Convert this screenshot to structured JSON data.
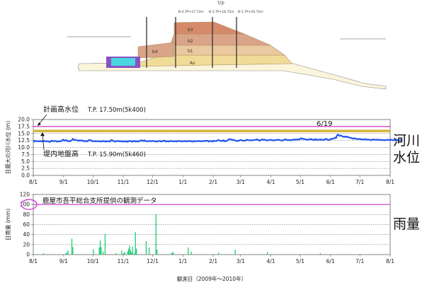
{
  "cross_section": {
    "header_label": "t/p",
    "layer_labels": [
      "b3",
      "b2",
      "b1",
      "b4",
      "As"
    ],
    "caption_lines": [
      "B-2.7P+17.72m",
      "B-1.7P+16.72m",
      "B-1.7P+16.72m"
    ],
    "colors": {
      "top_layer": "#d58a6a",
      "middle_layer": "#d9a487",
      "lower_layer": "#ebc9a0",
      "base_layer": "#f0dc98",
      "purple_block": "#8a52c0",
      "cyan_block": "#49d6e0",
      "line": "#888888"
    }
  },
  "chart_data": [
    {
      "type": "line",
      "ylabel": "日最大の河川水位 (m)",
      "ylim": [
        0,
        20
      ],
      "yticks": [
        "0.0",
        "2.5",
        "5.0",
        "7.5",
        "10.0",
        "12.5",
        "15.0",
        "17.5",
        "20.0"
      ],
      "xticks": [
        "8/1",
        "9/1",
        "10/1",
        "11/1",
        "12/1",
        "1/1",
        "2/1",
        "3/1",
        "4/1",
        "5/1",
        "6/1",
        "7/1",
        "8/1"
      ],
      "grid": true,
      "colors": {
        "series": "#2255ee",
        "plan_line": "#cc33cc",
        "ground_line": "#c9a600",
        "ground_band": "#d6b44a"
      },
      "annotations": {
        "plan_label": "計画高水位",
        "plan_value": "T.P.  17.50m(5k400)",
        "ground_label": "堤内地盤高",
        "ground_value": "T.P.  15.90m(5k460)",
        "date_marker": "6/19"
      },
      "reference_lines": {
        "plan_high_water": 17.5,
        "ground_level": 15.9
      },
      "series": [
        {
          "values": [
            11.9,
            12.4,
            12.3,
            12.2,
            12.2,
            12.2,
            12.2,
            12.3,
            12.1,
            12.2,
            12.3,
            12.3,
            12.2,
            12.2,
            12.2,
            12.1,
            12.0,
            12.0,
            12.4,
            12.4,
            12.2,
            12.3,
            12.3,
            12.2,
            12.1,
            12.1,
            12.2,
            12.2,
            12.2,
            12.6,
            12.8,
            12.4,
            12.5,
            12.7,
            12.4,
            12.2,
            12.3,
            12.2,
            12.4,
            12.6,
            13.1,
            12.7,
            12.7,
            12.7,
            12.6,
            12.4,
            12.4,
            12.6,
            12.4,
            12.5,
            12.5,
            12.2,
            12.3,
            12.3,
            12.2,
            12.2,
            12.5,
            12.7,
            12.5,
            12.5,
            12.2,
            12.2,
            12.2,
            12.2,
            12.2,
            12.2,
            12.2,
            12.2,
            12.2,
            12.1,
            12.2,
            12.3,
            12.2,
            12.1,
            12.1,
            12.2,
            12.2,
            12.2,
            12.1,
            12.6,
            12.6,
            12.4,
            12.2,
            12.1,
            12.1,
            12.3,
            12.3,
            12.2,
            12.2,
            12.3,
            12.1,
            12.1,
            12.2,
            12.1,
            12.1,
            12.2,
            12.0,
            12.2,
            12.4,
            12.2,
            12.2,
            12.0,
            12.3,
            12.3,
            12.1,
            12.2,
            12.1,
            12.1,
            12.3,
            12.4,
            12.6,
            12.4,
            12.3,
            12.6,
            12.3,
            12.2,
            12.2,
            12.2,
            12.3,
            12.3,
            12.2,
            12.3,
            12.3,
            12.3,
            12.2,
            12.1,
            12.1,
            12.2,
            12.3,
            12.3,
            12.1,
            12.2,
            12.3,
            12.5,
            12.3,
            12.1,
            12.2,
            12.2,
            12.1,
            12.3,
            12.3,
            12.2,
            12.2,
            12.2,
            12.2,
            12.2,
            12.1,
            12.3,
            12.3,
            12.3,
            12.2,
            12.2,
            12.2,
            12.2,
            12.2,
            12.3,
            12.2,
            12.2,
            12.2,
            12.4,
            12.2,
            12.2,
            12.1,
            12.1,
            12.3,
            12.2,
            12.2,
            12.2,
            12.3,
            12.3,
            12.2,
            12.3,
            12.2,
            12.2,
            12.4,
            12.3,
            12.3,
            12.4,
            12.4,
            12.1,
            12.3,
            12.3,
            12.2,
            12.1,
            12.4,
            12.3,
            12.3,
            12.3,
            12.6,
            12.6,
            12.5,
            12.3,
            12.4,
            12.3,
            12.6,
            12.2,
            12.3,
            12.3,
            12.5,
            12.8,
            12.9,
            13.0,
            12.8,
            12.8,
            12.6,
            12.7,
            12.5,
            12.3,
            12.3,
            12.5,
            12.4,
            12.6,
            12.7,
            12.5,
            12.4,
            12.4,
            12.5,
            12.5,
            12.8,
            12.6,
            12.6,
            12.6,
            12.5,
            12.6,
            12.6,
            12.6,
            12.7,
            12.7,
            12.9,
            12.8,
            12.6,
            12.4,
            12.7,
            12.7,
            12.9,
            12.7,
            12.8,
            12.6,
            12.6,
            12.5,
            12.6,
            12.6,
            12.8,
            12.6,
            12.6,
            12.5,
            12.6,
            12.6,
            12.6,
            12.8,
            12.7,
            12.7,
            12.6,
            12.5,
            12.5,
            12.5,
            12.8,
            12.8,
            12.9,
            12.6,
            12.7,
            12.7,
            12.5,
            12.7,
            12.6,
            12.8,
            12.8,
            12.9,
            12.8,
            12.8,
            12.9,
            12.8,
            12.9,
            13.3,
            13.1,
            13.2,
            13.0,
            13.0,
            12.9,
            12.8,
            12.8,
            12.8,
            13.0,
            12.9,
            13.0,
            12.7,
            12.8,
            12.6,
            13.0,
            12.8,
            12.7,
            12.8,
            12.8,
            12.9,
            12.8,
            12.7,
            12.8,
            12.7,
            12.9,
            13.1,
            12.9,
            12.7,
            12.6,
            12.9,
            13.1,
            13.0,
            13.1,
            13.3,
            13.5,
            13.3,
            14.2,
            14.6,
            14.3,
            14.2,
            14.3,
            14.1,
            13.9,
            13.8,
            13.9,
            13.7,
            13.9,
            13.8,
            13.6,
            13.5,
            13.4,
            13.3,
            13.3,
            13.1,
            13.3,
            13.2,
            13.0,
            13.0,
            13.1,
            13.0,
            13.0,
            12.9,
            12.9,
            12.9,
            12.8,
            13.0,
            12.9,
            12.8,
            12.8,
            12.8,
            12.8,
            12.6,
            12.7,
            12.9,
            12.8,
            12.8,
            12.7,
            12.8,
            12.7,
            12.8,
            12.7,
            12.6,
            12.7,
            12.7,
            12.6,
            12.6,
            12.6,
            12.7,
            12.8,
            12.7,
            12.6,
            12.8,
            12.7,
            12.6,
            12.6,
            12.6,
            12.5,
            12.7,
            12.6,
            12.6,
            12.6,
            12.6,
            12.6,
            12.5
          ]
        }
      ],
      "side_label": [
        "河川",
        "水位"
      ]
    },
    {
      "type": "bar",
      "ylabel": "日雨量 (mm)",
      "xlabel": "観測日（2009年～2010年）",
      "ylim": [
        0,
        120
      ],
      "yticks": [
        "0",
        "20",
        "40",
        "60",
        "80",
        "100",
        "120"
      ],
      "xticks": [
        "8/1",
        "9/1",
        "10/1",
        "11/1",
        "12/1",
        "1/1",
        "2/1",
        "3/1",
        "4/1",
        "5/1",
        "6/1",
        "7/1",
        "8/1"
      ],
      "grid": true,
      "colors": {
        "series": "#22cc77",
        "reference_line": "#cc33cc",
        "ring": "#cc33cc"
      },
      "annotations": {
        "source_note": "鹿屋市吾平総合支所提供の観測データ",
        "ring_value": "100"
      },
      "reference_lines": {
        "value_100": 100
      },
      "series": [
        {
          "values": [
            0,
            0,
            0,
            0,
            0,
            0,
            0,
            0,
            0,
            0,
            3,
            0,
            0,
            0,
            0,
            0,
            0,
            0,
            0,
            0,
            0,
            0,
            0,
            0,
            0,
            0,
            0,
            0,
            0,
            0,
            0,
            0,
            0,
            3,
            4,
            8,
            0,
            0,
            0,
            32,
            15,
            0,
            0,
            0,
            0,
            0,
            0,
            0,
            0,
            0,
            0,
            0,
            0,
            0,
            0,
            0,
            0,
            0,
            0,
            0,
            0,
            11,
            0,
            0,
            0,
            0,
            0,
            14,
            28,
            15,
            0,
            6,
            0,
            41,
            0,
            0,
            0,
            0,
            0,
            0,
            0,
            0,
            0,
            0,
            3,
            0,
            0,
            0,
            0,
            0,
            8,
            0,
            3,
            5,
            0,
            0,
            6,
            12,
            18,
            9,
            4,
            16,
            0,
            3,
            45,
            12,
            0,
            0,
            0,
            0,
            0,
            0,
            0,
            0,
            0,
            27,
            0,
            0,
            14,
            0,
            0,
            0,
            0,
            0,
            0,
            80,
            10,
            0,
            0,
            0,
            0,
            0,
            0,
            0,
            0,
            0,
            0,
            0,
            0,
            0,
            0,
            3,
            5,
            3,
            0,
            0,
            0,
            0,
            0,
            0,
            0,
            0,
            0,
            0,
            0,
            0,
            0,
            0,
            14,
            0,
            0,
            6,
            0,
            0,
            0,
            0,
            0,
            0,
            0,
            0,
            0,
            0,
            0,
            0,
            0,
            0,
            0,
            0,
            0,
            0,
            0,
            0,
            0,
            0,
            0,
            0,
            0,
            0,
            0,
            4,
            0,
            0,
            0,
            0,
            0,
            0,
            0,
            0,
            0,
            0,
            0,
            0,
            0,
            0,
            0,
            0,
            10,
            0,
            0,
            0,
            0,
            0,
            0,
            0,
            0,
            0,
            0,
            0,
            0,
            0,
            0,
            0,
            0,
            0,
            0,
            0,
            0,
            0,
            0,
            0,
            0,
            0,
            0,
            0,
            0,
            0,
            0,
            0,
            0,
            5,
            0,
            0,
            0,
            0,
            0,
            0,
            0,
            0,
            0,
            0,
            0,
            0,
            0,
            0,
            0,
            0,
            0,
            0,
            0,
            0,
            0,
            0,
            0,
            0,
            0,
            0,
            0,
            0,
            0,
            0,
            0,
            0,
            0,
            0,
            0,
            0,
            0,
            0,
            0,
            0,
            0,
            0,
            0,
            0,
            0,
            0,
            0,
            0,
            0,
            0,
            0,
            0,
            0,
            3,
            0,
            0,
            0,
            0,
            0,
            0,
            0,
            0,
            0,
            0,
            0,
            0,
            0,
            0,
            0,
            0,
            0,
            0,
            0,
            0,
            0,
            0,
            0,
            0,
            0,
            0,
            0,
            0,
            0,
            0,
            0,
            0,
            0,
            0,
            0,
            0,
            0,
            0,
            0,
            0,
            0,
            0,
            0,
            0,
            0,
            0,
            0,
            0,
            0,
            0,
            0,
            0,
            0,
            0,
            0,
            0,
            0,
            0,
            0,
            0,
            0,
            0,
            0,
            0,
            0,
            0,
            0,
            0,
            0,
            0,
            0,
            0,
            0,
            0,
            0,
            0,
            0,
            0,
            0,
            0,
            0
          ]
        }
      ],
      "side_label": [
        "雨量"
      ]
    }
  ]
}
